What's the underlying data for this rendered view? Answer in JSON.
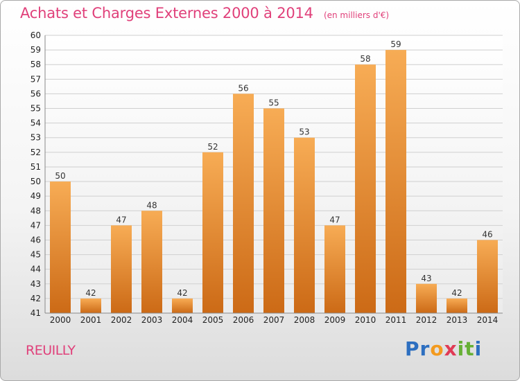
{
  "title": "Achats et Charges Externes 2000 à 2014",
  "subtitle": "(en milliers d'€)",
  "commune": "REUILLY",
  "logo": {
    "letters": [
      "P",
      "r",
      "o",
      "x",
      "i",
      "t",
      "i"
    ],
    "colors": [
      "#2d6fc0",
      "#2d6fc0",
      "#f39a1e",
      "#e03a55",
      "#66b035",
      "#66b035",
      "#2d6fc0"
    ]
  },
  "colors": {
    "title": "#e0407a",
    "bar_light": "#f6a84e",
    "bar_dark": "#cf6e18",
    "grid": "#cfcfcf",
    "axis": "#888888"
  },
  "chart_data": {
    "type": "bar",
    "title": "Achats et Charges Externes 2000 à 2014",
    "subtitle": "(en milliers d'€)",
    "xlabel": "",
    "ylabel": "",
    "categories": [
      "2000",
      "2001",
      "2002",
      "2003",
      "2004",
      "2005",
      "2006",
      "2007",
      "2008",
      "2009",
      "2010",
      "2011",
      "2012",
      "2013",
      "2014"
    ],
    "values": [
      50,
      42,
      47,
      48,
      42,
      52,
      56,
      55,
      53,
      47,
      58,
      59,
      43,
      42,
      46
    ],
    "ylim": [
      41,
      60
    ],
    "yticks": [
      41,
      42,
      43,
      44,
      45,
      46,
      47,
      48,
      49,
      50,
      51,
      52,
      53,
      54,
      55,
      56,
      57,
      58,
      59,
      60
    ],
    "grid": true,
    "legend": "none"
  }
}
